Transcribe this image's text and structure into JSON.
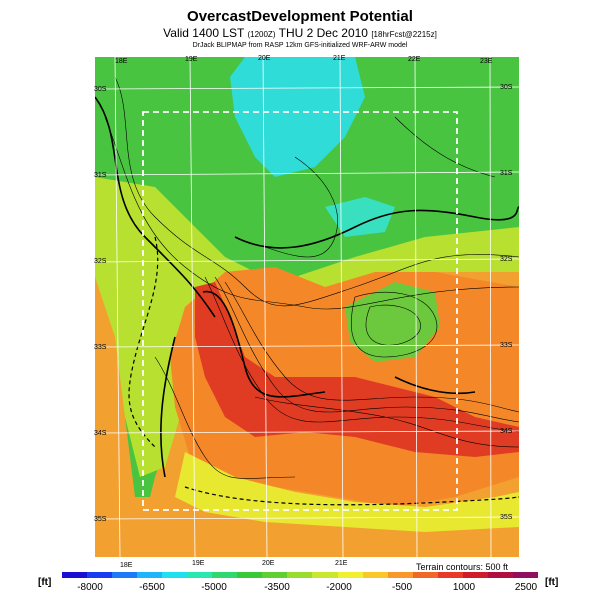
{
  "title": "OvercastDevelopment Potential",
  "subtitle": {
    "main": "Valid 1400 LST",
    "code": "(1200Z)",
    "date": "THU 2 Dec 2010",
    "fcst": "[18hrFcst@2215z]"
  },
  "credit": "DrJack BLIPMAP from RASP 12km GFS-initialized WRF-ARW model",
  "terrain_note": "Terrain contours: 500 ft",
  "unit": "[ft]",
  "lon_top": [
    "18E",
    "19E",
    "20E",
    "21E",
    "22E",
    "23E"
  ],
  "lon_bottom": [
    "18E",
    "19E",
    "20E",
    "21E"
  ],
  "lat_left": [
    "30S",
    "31S",
    "32S",
    "33S",
    "34S",
    "35S"
  ],
  "lat_right": [
    "30S",
    "31S",
    "32S",
    "33S",
    "34S",
    "35S"
  ],
  "scale_labels": [
    "-8000",
    "-6500",
    "-5000",
    "-3500",
    "-2000",
    "-500",
    "1000",
    "2500"
  ],
  "scale_colors": [
    "#1a0fd0",
    "#1a3cf0",
    "#1e78f8",
    "#20b4f8",
    "#20e0f0",
    "#28e8b0",
    "#30d870",
    "#38c838",
    "#60d030",
    "#98dc30",
    "#c8e830",
    "#f0f030",
    "#f8c828",
    "#f89828",
    "#f06828",
    "#e83828",
    "#d01c28",
    "#b01040",
    "#901060"
  ],
  "map_colors": {
    "sea": "#f5a030",
    "green": "#40c040",
    "cyan": "#30e0e0",
    "yellow": "#d8e830",
    "orange": "#f08028",
    "red": "#e02820"
  }
}
